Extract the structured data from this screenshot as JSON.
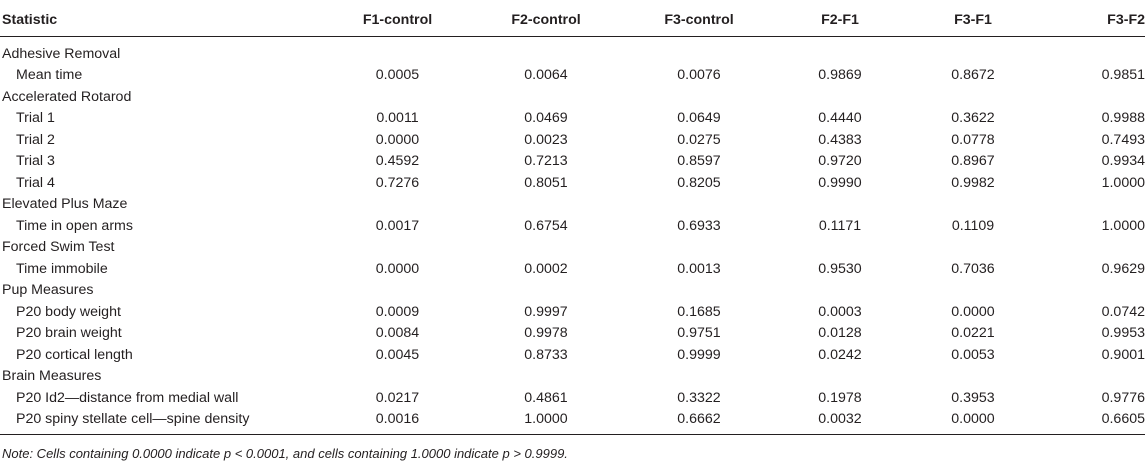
{
  "table": {
    "headers": [
      "Statistic",
      "F1-control",
      "F2-control",
      "F3-control",
      "F2-F1",
      "F3-F1",
      "F3-F2"
    ],
    "rows": [
      {
        "type": "section",
        "label": "Adhesive Removal"
      },
      {
        "type": "row",
        "label": "Mean time",
        "values": [
          "0.0005",
          "0.0064",
          "0.0076",
          "0.9869",
          "0.8672",
          "0.9851"
        ]
      },
      {
        "type": "section",
        "label": "Accelerated Rotarod"
      },
      {
        "type": "row",
        "label": "Trial 1",
        "values": [
          "0.0011",
          "0.0469",
          "0.0649",
          "0.4440",
          "0.3622",
          "0.9988"
        ]
      },
      {
        "type": "row",
        "label": "Trial 2",
        "values": [
          "0.0000",
          "0.0023",
          "0.0275",
          "0.4383",
          "0.0778",
          "0.7493"
        ]
      },
      {
        "type": "row",
        "label": "Trial 3",
        "values": [
          "0.4592",
          "0.7213",
          "0.8597",
          "0.9720",
          "0.8967",
          "0.9934"
        ]
      },
      {
        "type": "row",
        "label": "Trial 4",
        "values": [
          "0.7276",
          "0.8051",
          "0.8205",
          "0.9990",
          "0.9982",
          "1.0000"
        ]
      },
      {
        "type": "section",
        "label": "Elevated Plus Maze"
      },
      {
        "type": "row",
        "label": "Time in open arms",
        "values": [
          "0.0017",
          "0.6754",
          "0.6933",
          "0.1171",
          "0.1109",
          "1.0000"
        ]
      },
      {
        "type": "section",
        "label": "Forced Swim Test"
      },
      {
        "type": "row",
        "label": "Time immobile",
        "values": [
          "0.0000",
          "0.0002",
          "0.0013",
          "0.9530",
          "0.7036",
          "0.9629"
        ]
      },
      {
        "type": "section",
        "label": "Pup Measures"
      },
      {
        "type": "row",
        "label": "P20 body weight",
        "values": [
          "0.0009",
          "0.9997",
          "0.1685",
          "0.0003",
          "0.0000",
          "0.0742"
        ]
      },
      {
        "type": "row",
        "label": "P20 brain weight",
        "values": [
          "0.0084",
          "0.9978",
          "0.9751",
          "0.0128",
          "0.0221",
          "0.9953"
        ]
      },
      {
        "type": "row",
        "label": "P20 cortical length",
        "values": [
          "0.0045",
          "0.8733",
          "0.9999",
          "0.0242",
          "0.0053",
          "0.9001"
        ]
      },
      {
        "type": "section",
        "label": "Brain Measures"
      },
      {
        "type": "row",
        "label": "P20 Id2—distance from medial wall",
        "values": [
          "0.0217",
          "0.4861",
          "0.3322",
          "0.1978",
          "0.3953",
          "0.9776"
        ]
      },
      {
        "type": "row",
        "label": "P20 spiny stellate cell—spine density",
        "values": [
          "0.0016",
          "1.0000",
          "0.6662",
          "0.0032",
          "0.0000",
          "0.6605"
        ]
      }
    ]
  },
  "note": "Note: Cells containing 0.0000 indicate p < 0.0001, and cells containing 1.0000 indicate p > 0.9999."
}
